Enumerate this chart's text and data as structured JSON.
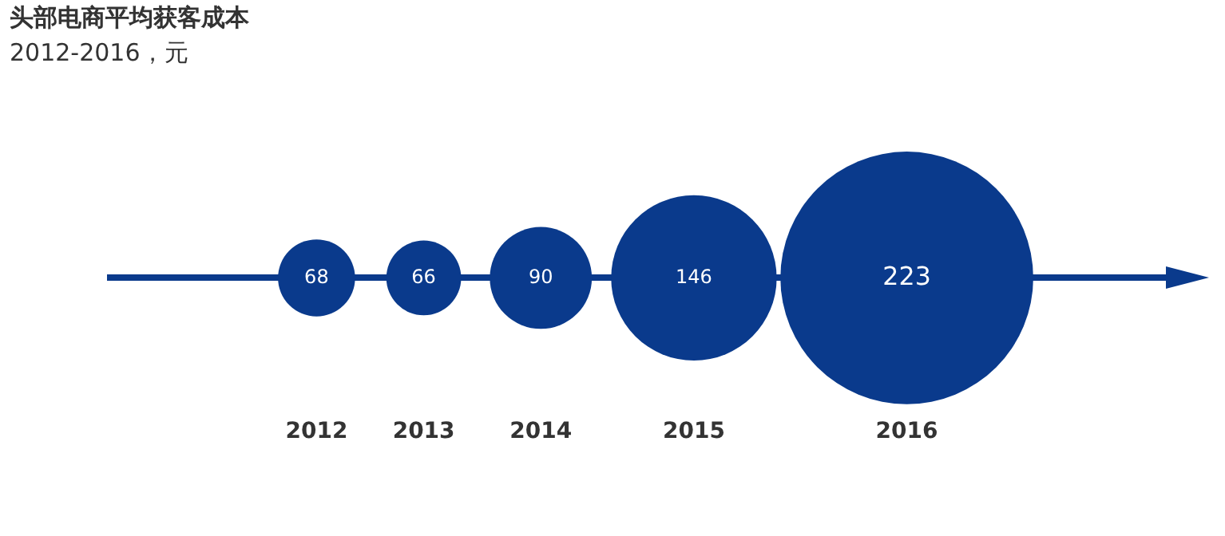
{
  "chart_data": {
    "type": "other",
    "title": "头部电商平均获客成本",
    "subtitle": "2012-2016，元",
    "categories": [
      "2012",
      "2013",
      "2014",
      "2015",
      "2016"
    ],
    "values": [
      68,
      66,
      90,
      146,
      223
    ],
    "color": "#0a3a8c",
    "data_labels": true
  }
}
